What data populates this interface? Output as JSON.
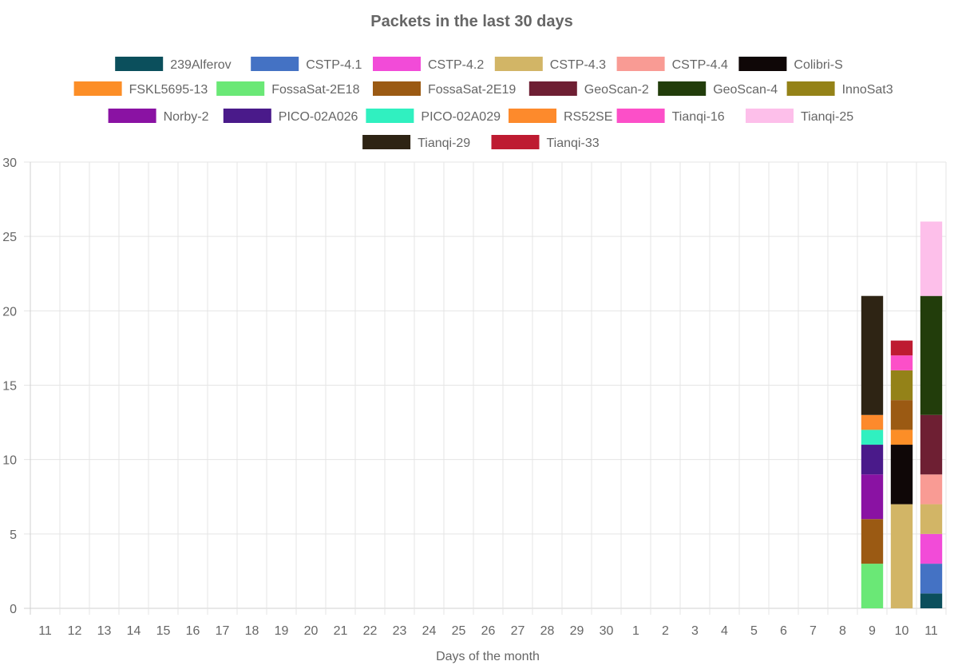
{
  "chart_data": {
    "type": "bar",
    "stacked": true,
    "title": "Packets in the last 30 days",
    "xlabel": "Days of the month",
    "ylabel": "",
    "ylim": [
      0,
      30
    ],
    "yticks": [
      0,
      5,
      10,
      15,
      20,
      25,
      30
    ],
    "grid": true,
    "legend_position": "top",
    "categories": [
      "11",
      "12",
      "13",
      "14",
      "15",
      "16",
      "17",
      "18",
      "19",
      "20",
      "21",
      "22",
      "23",
      "24",
      "25",
      "26",
      "27",
      "28",
      "29",
      "30",
      "1",
      "2",
      "3",
      "4",
      "5",
      "6",
      "7",
      "8",
      "9",
      "10",
      "11"
    ],
    "series": [
      {
        "name": "239Alferov",
        "color": "#0b4f5c",
        "values": [
          0,
          0,
          0,
          0,
          0,
          0,
          0,
          0,
          0,
          0,
          0,
          0,
          0,
          0,
          0,
          0,
          0,
          0,
          0,
          0,
          0,
          0,
          0,
          0,
          0,
          0,
          0,
          0,
          0,
          0,
          1
        ]
      },
      {
        "name": "CSTP-4.1",
        "color": "#4472c4",
        "values": [
          0,
          0,
          0,
          0,
          0,
          0,
          0,
          0,
          0,
          0,
          0,
          0,
          0,
          0,
          0,
          0,
          0,
          0,
          0,
          0,
          0,
          0,
          0,
          0,
          0,
          0,
          0,
          0,
          0,
          0,
          2
        ]
      },
      {
        "name": "CSTP-4.2",
        "color": "#f24bd8",
        "values": [
          0,
          0,
          0,
          0,
          0,
          0,
          0,
          0,
          0,
          0,
          0,
          0,
          0,
          0,
          0,
          0,
          0,
          0,
          0,
          0,
          0,
          0,
          0,
          0,
          0,
          0,
          0,
          0,
          0,
          0,
          2
        ]
      },
      {
        "name": "CSTP-4.3",
        "color": "#d2b566",
        "values": [
          0,
          0,
          0,
          0,
          0,
          0,
          0,
          0,
          0,
          0,
          0,
          0,
          0,
          0,
          0,
          0,
          0,
          0,
          0,
          0,
          0,
          0,
          0,
          0,
          0,
          0,
          0,
          0,
          0,
          7,
          2
        ]
      },
      {
        "name": "CSTP-4.4",
        "color": "#f99b94",
        "values": [
          0,
          0,
          0,
          0,
          0,
          0,
          0,
          0,
          0,
          0,
          0,
          0,
          0,
          0,
          0,
          0,
          0,
          0,
          0,
          0,
          0,
          0,
          0,
          0,
          0,
          0,
          0,
          0,
          0,
          0,
          2
        ]
      },
      {
        "name": "Colibri-S",
        "color": "#0f0707",
        "values": [
          0,
          0,
          0,
          0,
          0,
          0,
          0,
          0,
          0,
          0,
          0,
          0,
          0,
          0,
          0,
          0,
          0,
          0,
          0,
          0,
          0,
          0,
          0,
          0,
          0,
          0,
          0,
          0,
          0,
          4,
          0
        ]
      },
      {
        "name": "FSKL5695-13",
        "color": "#fc8e27",
        "values": [
          0,
          0,
          0,
          0,
          0,
          0,
          0,
          0,
          0,
          0,
          0,
          0,
          0,
          0,
          0,
          0,
          0,
          0,
          0,
          0,
          0,
          0,
          0,
          0,
          0,
          0,
          0,
          0,
          0,
          1,
          0
        ]
      },
      {
        "name": "FossaSat-2E18",
        "color": "#6ae876",
        "values": [
          0,
          0,
          0,
          0,
          0,
          0,
          0,
          0,
          0,
          0,
          0,
          0,
          0,
          0,
          0,
          0,
          0,
          0,
          0,
          0,
          0,
          0,
          0,
          0,
          0,
          0,
          0,
          0,
          3,
          0,
          0
        ]
      },
      {
        "name": "FossaSat-2E19",
        "color": "#9b5a13",
        "values": [
          0,
          0,
          0,
          0,
          0,
          0,
          0,
          0,
          0,
          0,
          0,
          0,
          0,
          0,
          0,
          0,
          0,
          0,
          0,
          0,
          0,
          0,
          0,
          0,
          0,
          0,
          0,
          0,
          3,
          2,
          0
        ]
      },
      {
        "name": "GeoScan-2",
        "color": "#6e1f33",
        "values": [
          0,
          0,
          0,
          0,
          0,
          0,
          0,
          0,
          0,
          0,
          0,
          0,
          0,
          0,
          0,
          0,
          0,
          0,
          0,
          0,
          0,
          0,
          0,
          0,
          0,
          0,
          0,
          0,
          0,
          0,
          4
        ]
      },
      {
        "name": "GeoScan-4",
        "color": "#223d0b",
        "values": [
          0,
          0,
          0,
          0,
          0,
          0,
          0,
          0,
          0,
          0,
          0,
          0,
          0,
          0,
          0,
          0,
          0,
          0,
          0,
          0,
          0,
          0,
          0,
          0,
          0,
          0,
          0,
          0,
          0,
          0,
          8
        ]
      },
      {
        "name": "InnoSat3",
        "color": "#948218",
        "values": [
          0,
          0,
          0,
          0,
          0,
          0,
          0,
          0,
          0,
          0,
          0,
          0,
          0,
          0,
          0,
          0,
          0,
          0,
          0,
          0,
          0,
          0,
          0,
          0,
          0,
          0,
          0,
          0,
          0,
          2,
          0
        ]
      },
      {
        "name": "Norby-2",
        "color": "#8a12a3",
        "values": [
          0,
          0,
          0,
          0,
          0,
          0,
          0,
          0,
          0,
          0,
          0,
          0,
          0,
          0,
          0,
          0,
          0,
          0,
          0,
          0,
          0,
          0,
          0,
          0,
          0,
          0,
          0,
          0,
          3,
          0,
          0
        ]
      },
      {
        "name": "PICO-02A026",
        "color": "#4a1a8a",
        "values": [
          0,
          0,
          0,
          0,
          0,
          0,
          0,
          0,
          0,
          0,
          0,
          0,
          0,
          0,
          0,
          0,
          0,
          0,
          0,
          0,
          0,
          0,
          0,
          0,
          0,
          0,
          0,
          0,
          2,
          0,
          0
        ]
      },
      {
        "name": "PICO-02A029",
        "color": "#30f0c0",
        "values": [
          0,
          0,
          0,
          0,
          0,
          0,
          0,
          0,
          0,
          0,
          0,
          0,
          0,
          0,
          0,
          0,
          0,
          0,
          0,
          0,
          0,
          0,
          0,
          0,
          0,
          0,
          0,
          0,
          1,
          0,
          0
        ]
      },
      {
        "name": "RS52SE",
        "color": "#fd8a2c",
        "values": [
          0,
          0,
          0,
          0,
          0,
          0,
          0,
          0,
          0,
          0,
          0,
          0,
          0,
          0,
          0,
          0,
          0,
          0,
          0,
          0,
          0,
          0,
          0,
          0,
          0,
          0,
          0,
          0,
          1,
          0,
          0
        ]
      },
      {
        "name": "Tianqi-16",
        "color": "#fc4fc8",
        "values": [
          0,
          0,
          0,
          0,
          0,
          0,
          0,
          0,
          0,
          0,
          0,
          0,
          0,
          0,
          0,
          0,
          0,
          0,
          0,
          0,
          0,
          0,
          0,
          0,
          0,
          0,
          0,
          0,
          0,
          1,
          0
        ]
      },
      {
        "name": "Tianqi-25",
        "color": "#fdbfea",
        "values": [
          0,
          0,
          0,
          0,
          0,
          0,
          0,
          0,
          0,
          0,
          0,
          0,
          0,
          0,
          0,
          0,
          0,
          0,
          0,
          0,
          0,
          0,
          0,
          0,
          0,
          0,
          0,
          0,
          0,
          0,
          5
        ]
      },
      {
        "name": "Tianqi-29",
        "color": "#2e2414",
        "values": [
          0,
          0,
          0,
          0,
          0,
          0,
          0,
          0,
          0,
          0,
          0,
          0,
          0,
          0,
          0,
          0,
          0,
          0,
          0,
          0,
          0,
          0,
          0,
          0,
          0,
          0,
          0,
          0,
          8,
          0,
          0
        ]
      },
      {
        "name": "Tianqi-33",
        "color": "#be1b31",
        "values": [
          0,
          0,
          0,
          0,
          0,
          0,
          0,
          0,
          0,
          0,
          0,
          0,
          0,
          0,
          0,
          0,
          0,
          0,
          0,
          0,
          0,
          0,
          0,
          0,
          0,
          0,
          0,
          0,
          0,
          1,
          0
        ]
      }
    ]
  }
}
